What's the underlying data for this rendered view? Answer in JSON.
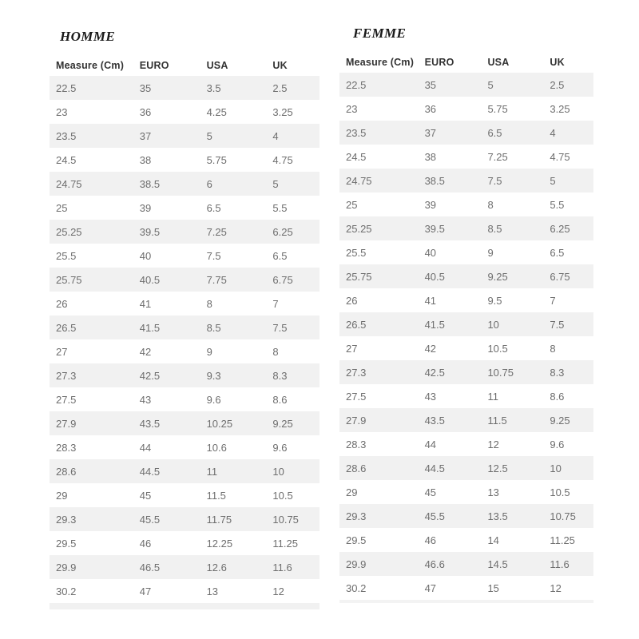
{
  "colors": {
    "background": "#ffffff",
    "zebra_row": "#f1f1f1",
    "data_text": "#6e6e6e",
    "header_text": "#333333",
    "title_text": "#191919"
  },
  "tables": [
    {
      "id": "homme",
      "title": "HOMME",
      "headers": [
        "Measure (Cm)",
        "EURO",
        "USA",
        "UK"
      ],
      "rows": [
        [
          "22.5",
          "35",
          "3.5",
          "2.5"
        ],
        [
          "23",
          "36",
          "4.25",
          "3.25"
        ],
        [
          "23.5",
          "37",
          "5",
          "4"
        ],
        [
          "24.5",
          "38",
          "5.75",
          "4.75"
        ],
        [
          "24.75",
          "38.5",
          "6",
          "5"
        ],
        [
          "25",
          "39",
          "6.5",
          "5.5"
        ],
        [
          "25.25",
          "39.5",
          "7.25",
          "6.25"
        ],
        [
          "25.5",
          "40",
          "7.5",
          "6.5"
        ],
        [
          "25.75",
          "40.5",
          "7.75",
          "6.75"
        ],
        [
          "26",
          "41",
          "8",
          "7"
        ],
        [
          "26.5",
          "41.5",
          "8.5",
          "7.5"
        ],
        [
          "27",
          "42",
          "9",
          "8"
        ],
        [
          "27.3",
          "42.5",
          "9.3",
          "8.3"
        ],
        [
          "27.5",
          "43",
          "9.6",
          "8.6"
        ],
        [
          "27.9",
          "43.5",
          "10.25",
          "9.25"
        ],
        [
          "28.3",
          "44",
          "10.6",
          "9.6"
        ],
        [
          "28.6",
          "44.5",
          "11",
          "10"
        ],
        [
          "29",
          "45",
          "11.5",
          "10.5"
        ],
        [
          "29.3",
          "45.5",
          "11.75",
          "10.75"
        ],
        [
          "29.5",
          "46",
          "12.25",
          "11.25"
        ],
        [
          "29.9",
          "46.5",
          "12.6",
          "11.6"
        ],
        [
          "30.2",
          "47",
          "13",
          "12"
        ]
      ]
    },
    {
      "id": "femme",
      "title": "FEMME",
      "headers": [
        "Measure (Cm)",
        "EURO",
        "USA",
        "UK"
      ],
      "rows": [
        [
          "22.5",
          "35",
          "5",
          "2.5"
        ],
        [
          "23",
          "36",
          "5.75",
          "3.25"
        ],
        [
          "23.5",
          "37",
          "6.5",
          "4"
        ],
        [
          "24.5",
          "38",
          "7.25",
          "4.75"
        ],
        [
          "24.75",
          "38.5",
          "7.5",
          "5"
        ],
        [
          "25",
          "39",
          "8",
          "5.5"
        ],
        [
          "25.25",
          "39.5",
          "8.5",
          "6.25"
        ],
        [
          "25.5",
          "40",
          "9",
          "6.5"
        ],
        [
          "25.75",
          "40.5",
          "9.25",
          "6.75"
        ],
        [
          "26",
          "41",
          "9.5",
          "7"
        ],
        [
          "26.5",
          "41.5",
          "10",
          "7.5"
        ],
        [
          "27",
          "42",
          "10.5",
          "8"
        ],
        [
          "27.3",
          "42.5",
          "10.75",
          "8.3"
        ],
        [
          "27.5",
          "43",
          "11",
          "8.6"
        ],
        [
          "27.9",
          "43.5",
          "11.5",
          "9.25"
        ],
        [
          "28.3",
          "44",
          "12",
          "9.6"
        ],
        [
          "28.6",
          "44.5",
          "12.5",
          "10"
        ],
        [
          "29",
          "45",
          "13",
          "10.5"
        ],
        [
          "29.3",
          "45.5",
          "13.5",
          "10.75"
        ],
        [
          "29.5",
          "46",
          "14",
          "11.25"
        ],
        [
          "29.9",
          "46.6",
          "14.5",
          "11.6"
        ],
        [
          "30.2",
          "47",
          "15",
          "12"
        ]
      ]
    }
  ]
}
